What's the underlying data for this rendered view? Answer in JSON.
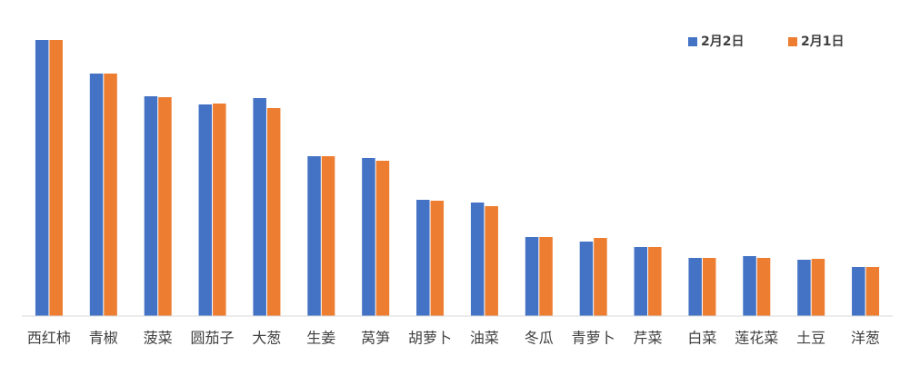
{
  "chart_data": {
    "type": "bar",
    "categories": [
      "西红柿",
      "青椒",
      "菠菜",
      "圆茄子",
      "大葱",
      "生姜",
      "莴笋",
      "胡萝卜",
      "油菜",
      "冬瓜",
      "青萝卜",
      "芹菜",
      "白菜",
      "莲花菜",
      "土豆",
      "洋葱"
    ],
    "series": [
      {
        "name": "2月2日",
        "color": "#4472c4",
        "values": [
          304,
          267,
          242,
          233,
          240,
          176,
          174,
          128,
          125,
          87,
          82,
          76,
          64,
          66,
          62,
          54
        ]
      },
      {
        "name": "2月1日",
        "color": "#ed7d31",
        "values": [
          304,
          267,
          241,
          234,
          229,
          176,
          171,
          127,
          121,
          87,
          86,
          76,
          64,
          64,
          63,
          54
        ]
      }
    ],
    "ylim": [
      0,
      320
    ],
    "legend": "top-right"
  }
}
